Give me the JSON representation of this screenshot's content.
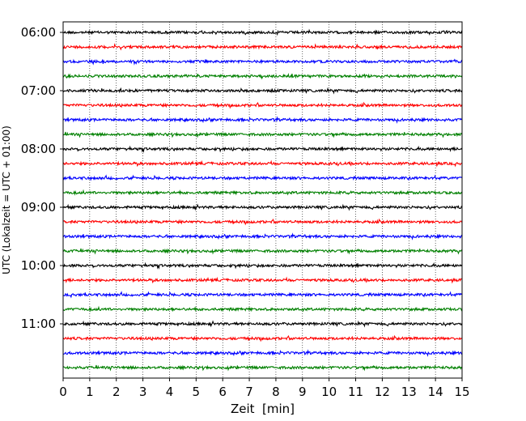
{
  "chart_data": {
    "type": "line",
    "title": "",
    "xlabel": "Zeit  [min]",
    "ylabel": "UTC (Lokalzeit = UTC + 01:00)",
    "xlim": [
      0,
      15
    ],
    "x_ticks": [
      0,
      1,
      2,
      3,
      4,
      5,
      6,
      7,
      8,
      9,
      10,
      11,
      12,
      13,
      14,
      15
    ],
    "x_tick_labels": [
      "0",
      "1",
      "2",
      "3",
      "4",
      "5",
      "6",
      "7",
      "8",
      "9",
      "10",
      "11",
      "12",
      "13",
      "14",
      "15"
    ],
    "y_tick_labels": [
      "06:00",
      "07:00",
      "08:00",
      "09:00",
      "10:00",
      "11:00"
    ],
    "grid": "vertical dotted lines at each minute",
    "trace_interval_min": 15,
    "trace_colors": [
      "#000000",
      "#ff0000",
      "#0000ff",
      "#008000"
    ],
    "traces": [
      {
        "start": "06:00"
      },
      {
        "start": "06:15"
      },
      {
        "start": "06:30"
      },
      {
        "start": "06:45"
      },
      {
        "start": "07:00"
      },
      {
        "start": "07:15"
      },
      {
        "start": "07:30"
      },
      {
        "start": "07:45"
      },
      {
        "start": "08:00"
      },
      {
        "start": "08:15"
      },
      {
        "start": "08:30"
      },
      {
        "start": "08:45"
      },
      {
        "start": "09:00"
      },
      {
        "start": "09:15"
      },
      {
        "start": "09:30"
      },
      {
        "start": "09:45"
      },
      {
        "start": "10:00"
      },
      {
        "start": "10:15"
      },
      {
        "start": "10:30"
      },
      {
        "start": "10:45"
      },
      {
        "start": "11:00"
      },
      {
        "start": "11:15"
      },
      {
        "start": "11:30"
      },
      {
        "start": "11:45"
      }
    ]
  }
}
